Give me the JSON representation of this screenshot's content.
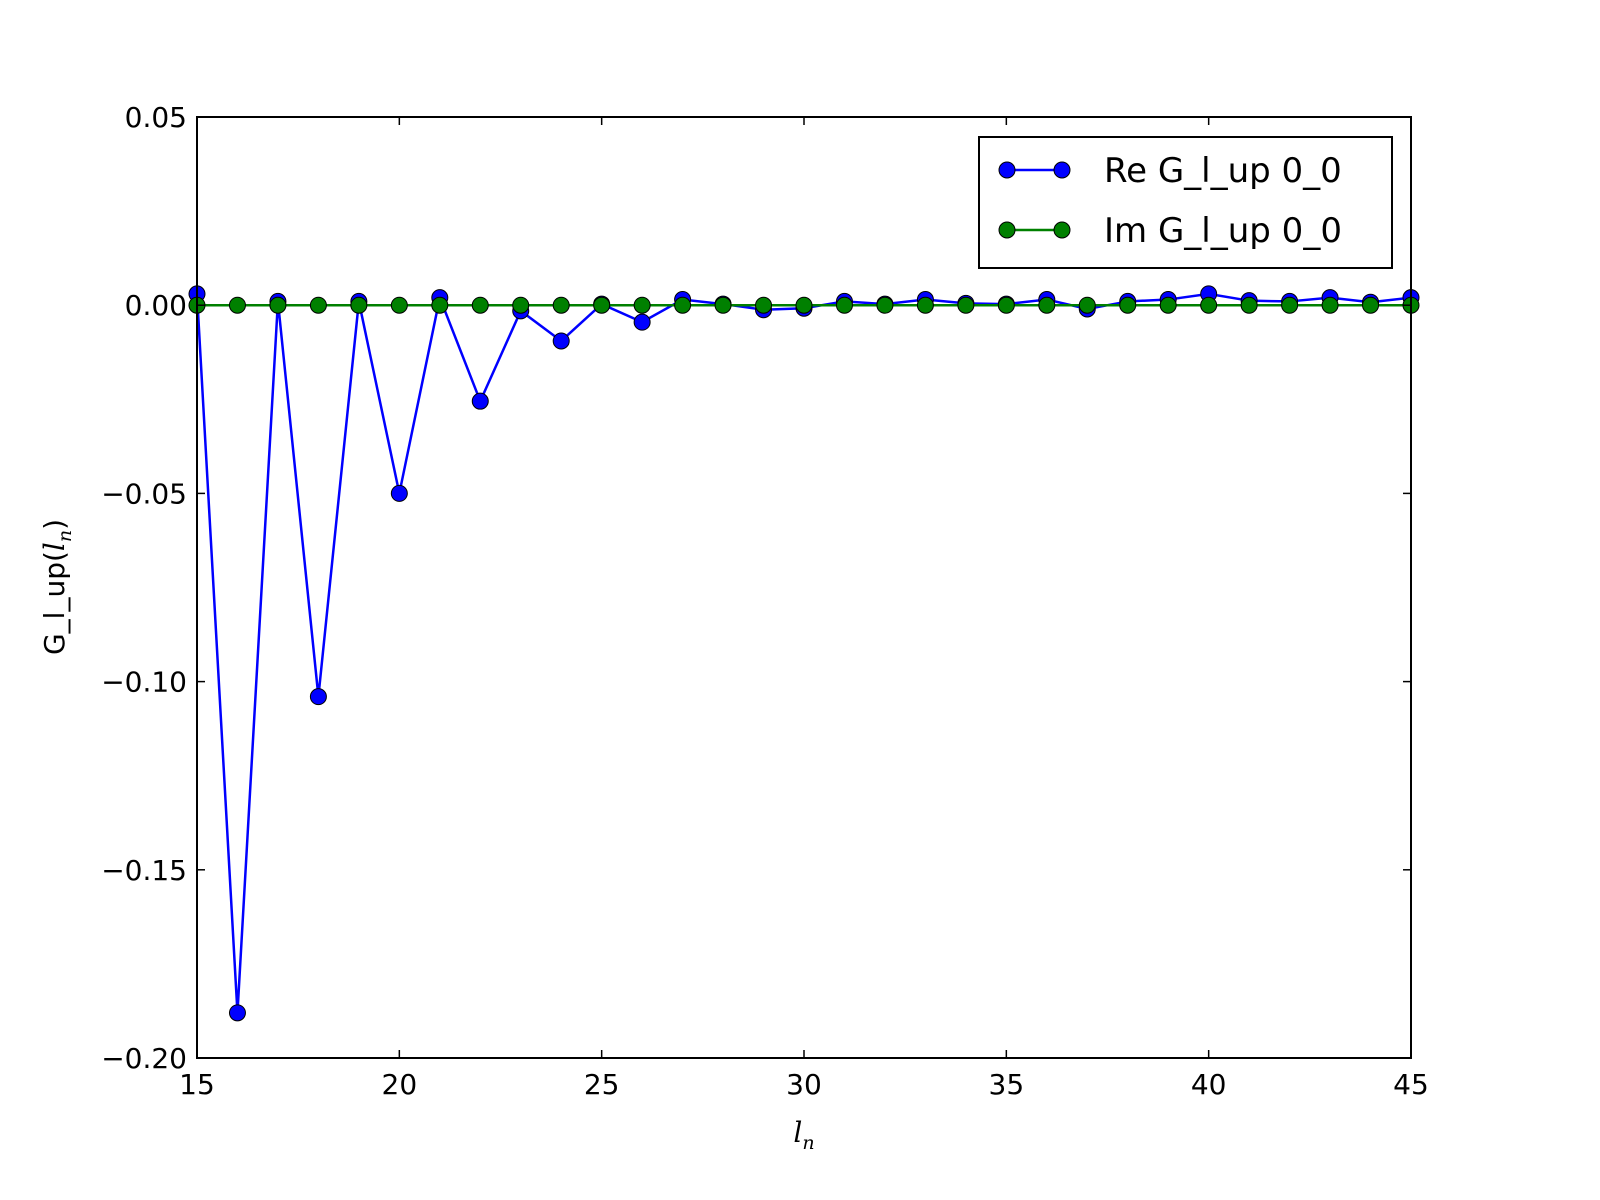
{
  "chart_data": {
    "type": "line",
    "title": "",
    "xlabel": "l_n",
    "ylabel": "G_l_up(l_n)",
    "xlim": [
      15,
      45
    ],
    "ylim": [
      -0.2,
      0.05
    ],
    "xticks": [
      "15",
      "20",
      "25",
      "30",
      "35",
      "40",
      "45"
    ],
    "yticks": [
      "0.05",
      "0.00",
      "−0.05",
      "−0.10",
      "−0.15",
      "−0.20"
    ],
    "xtick_values": [
      15,
      20,
      25,
      30,
      35,
      40,
      45
    ],
    "ytick_values": [
      0.05,
      0,
      -0.05,
      -0.1,
      -0.15,
      -0.2
    ],
    "grid": false,
    "legend": "top-right",
    "x": [
      15,
      16,
      17,
      18,
      19,
      20,
      21,
      22,
      23,
      24,
      25,
      26,
      27,
      28,
      29,
      30,
      31,
      32,
      33,
      34,
      35,
      36,
      37,
      38,
      39,
      40,
      41,
      42,
      43,
      44,
      45
    ],
    "series": [
      {
        "name": "Re G_l_up 0_0",
        "color": "#0000ff",
        "values": [
          0.003,
          -0.188,
          0.001,
          -0.104,
          0.001,
          -0.05,
          0.002,
          -0.0255,
          -0.0015,
          -0.0095,
          0.0003,
          -0.0045,
          0.0015,
          0.0003,
          -0.0012,
          -0.0008,
          0.001,
          0.0003,
          0.0015,
          0.0005,
          0.0003,
          0.0015,
          -0.001,
          0.001,
          0.0015,
          0.003,
          0.0012,
          0.001,
          0.002,
          0.0008,
          0.002
        ]
      },
      {
        "name": "Im G_l_up 0_0",
        "color": "#008000",
        "values": [
          0,
          0,
          0,
          0,
          0,
          0,
          0,
          0,
          0,
          0,
          0,
          0,
          0,
          0,
          0,
          0,
          0,
          0,
          0,
          0,
          0,
          0,
          0,
          0,
          0,
          0,
          0,
          0,
          0,
          0,
          0
        ]
      }
    ]
  }
}
